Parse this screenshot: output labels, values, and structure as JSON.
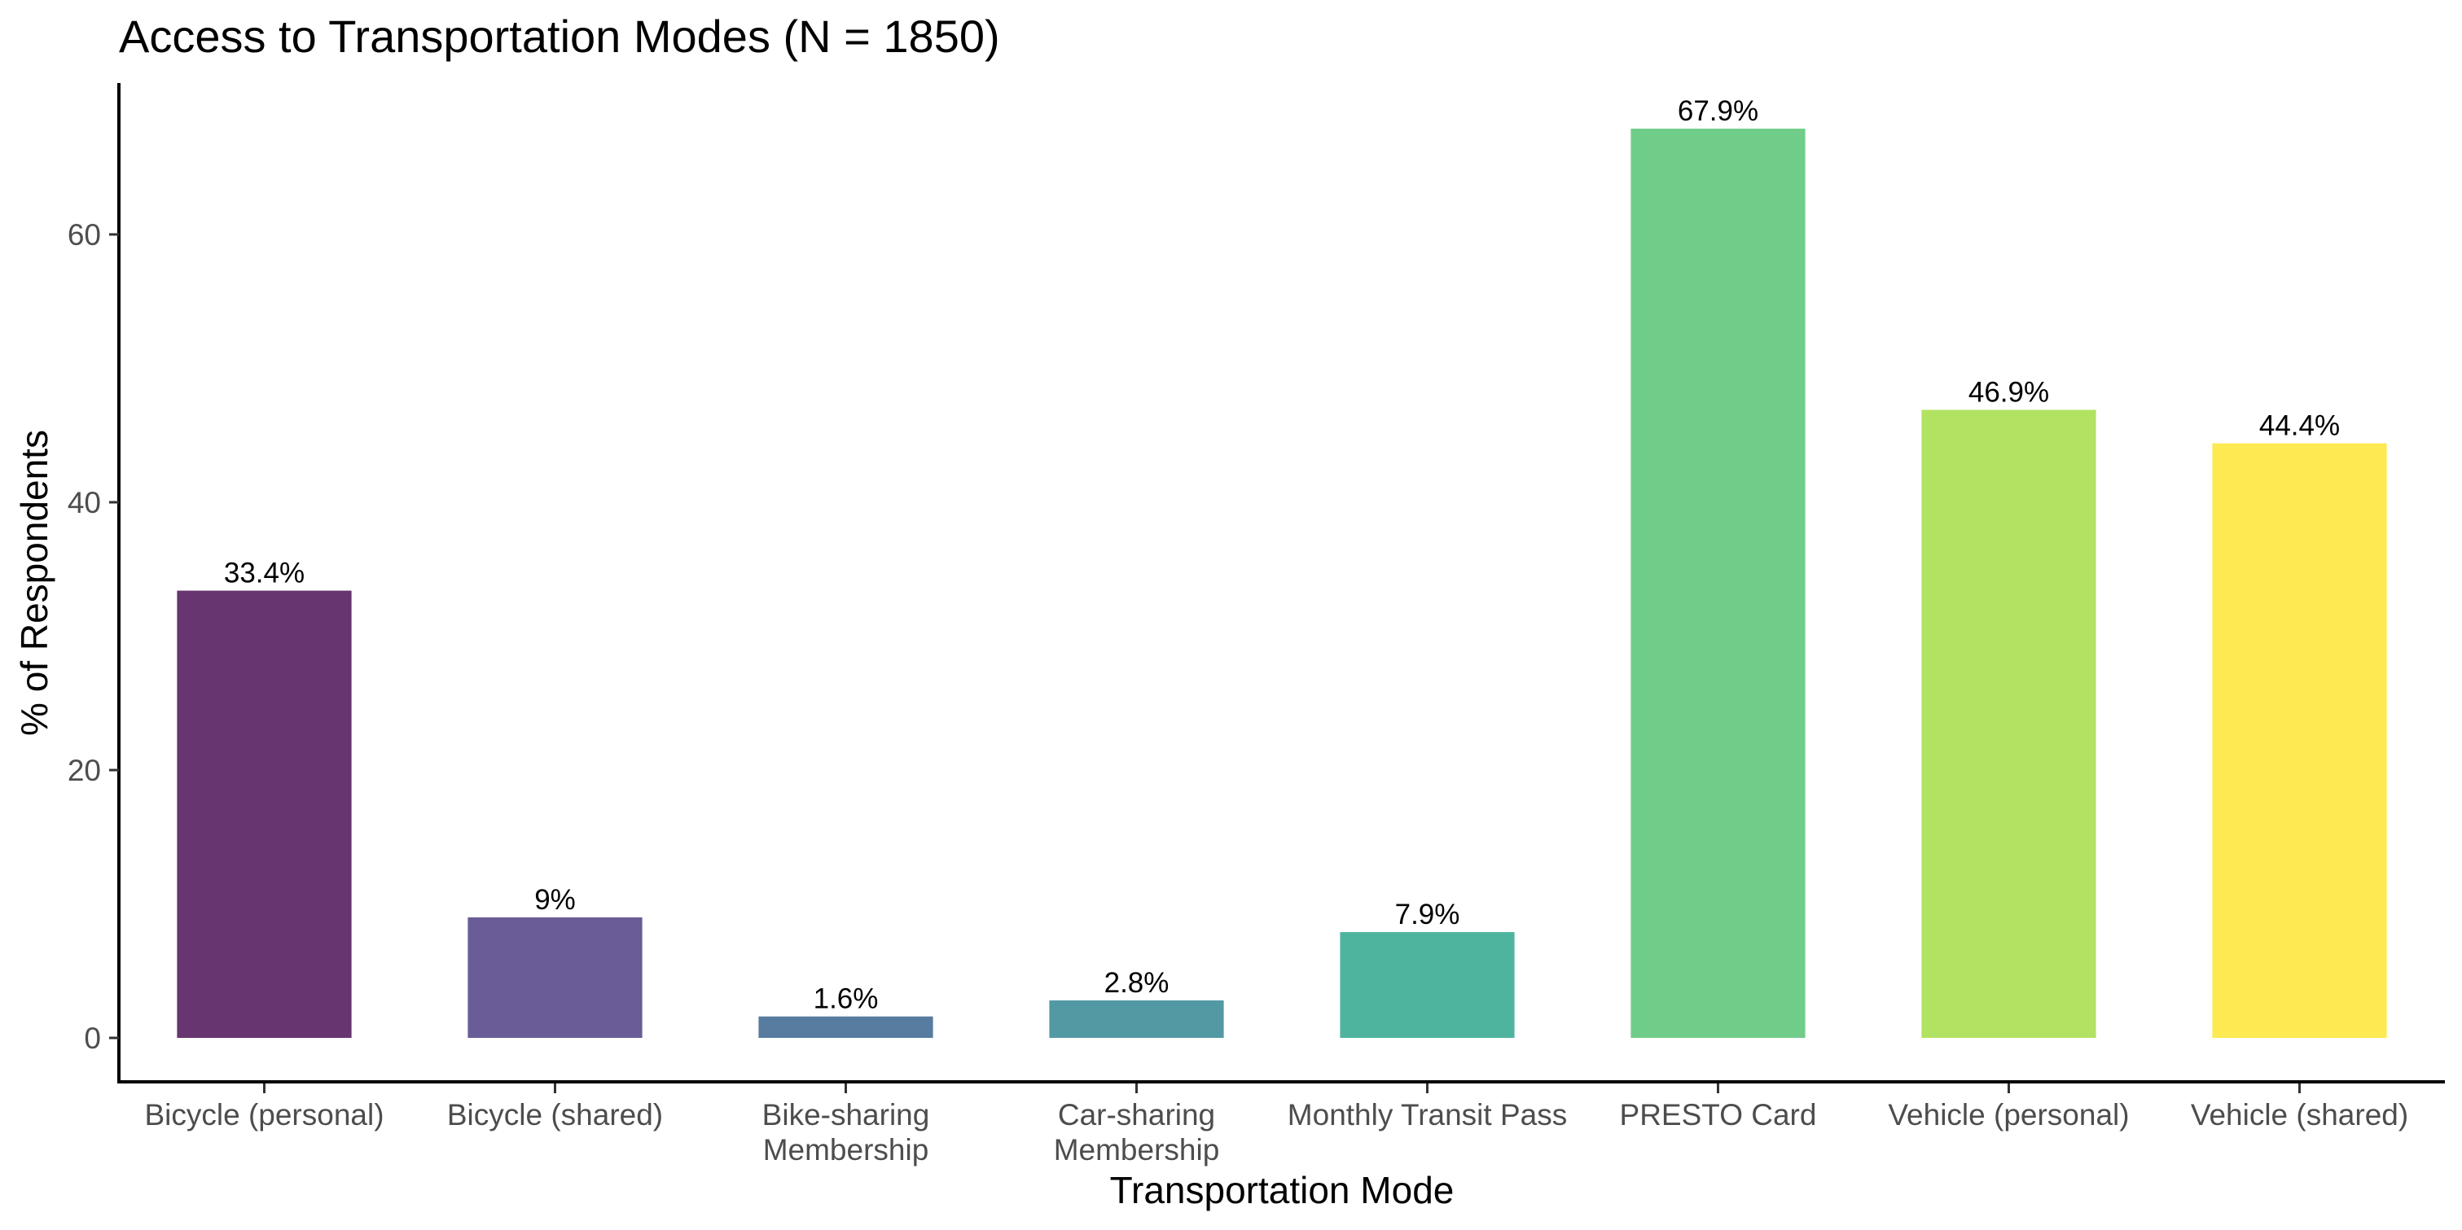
{
  "chart_data": {
    "type": "bar",
    "title": "Access to Transportation Modes (N = 1850)",
    "xlabel": "Transportation Mode",
    "ylabel": "% of Respondents",
    "ylim": [
      0,
      68
    ],
    "yticks": [
      0,
      20,
      40,
      60
    ],
    "grid": false,
    "legend": "none",
    "categories": [
      [
        "Bicycle (personal)"
      ],
      [
        "Bicycle (shared)"
      ],
      [
        "Bike-sharing",
        "Membership"
      ],
      [
        "Car-sharing",
        "Membership"
      ],
      [
        "Monthly Transit Pass"
      ],
      [
        "PRESTO Card"
      ],
      [
        "Vehicle (personal)"
      ],
      [
        "Vehicle (shared)"
      ]
    ],
    "values": [
      33.4,
      9,
      1.6,
      2.8,
      7.9,
      67.9,
      46.9,
      44.4
    ],
    "value_labels": [
      "33.4%",
      "9%",
      "1.6%",
      "2.8%",
      "7.9%",
      "67.9%",
      "46.9%",
      "44.4%"
    ],
    "colors": [
      "#67356f",
      "#6a5c96",
      "#587ca0",
      "#5399a4",
      "#4fb49e",
      "#6fcd89",
      "#b2e262",
      "#fde951"
    ]
  }
}
